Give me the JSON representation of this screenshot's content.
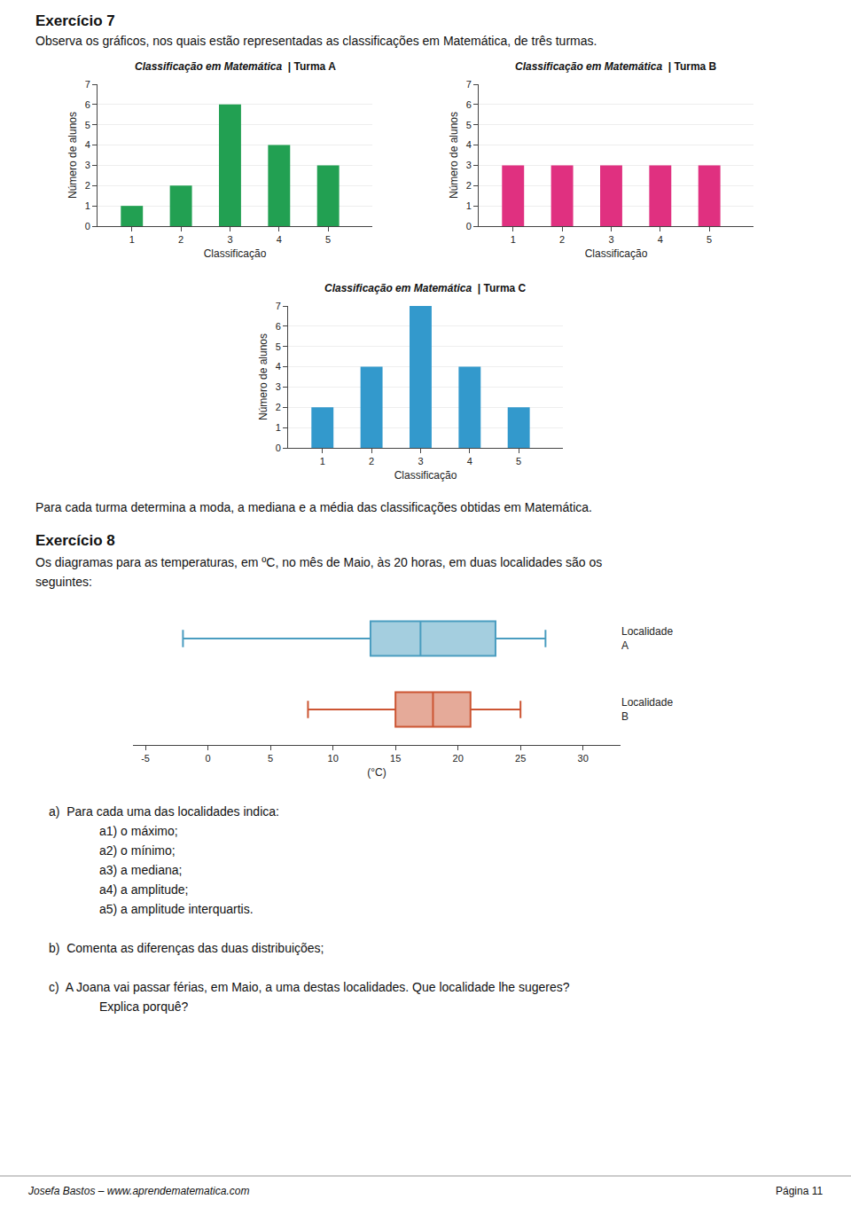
{
  "chart_data": [
    {
      "type": "bar",
      "title": "Classificação em Matemática",
      "subtitle": "| Turma A",
      "xlabel": "Classificação",
      "ylabel": "Número de alunos",
      "x": [
        1,
        2,
        3,
        4,
        5
      ],
      "values": [
        1,
        2,
        6,
        4,
        3
      ],
      "color": "#22a052",
      "xlim": [
        0.3,
        5.9
      ],
      "xticks": [
        1,
        2,
        3,
        4,
        5
      ],
      "ylim": [
        0,
        7
      ],
      "yticks": [
        0,
        1,
        2,
        3,
        4,
        5,
        6,
        7
      ],
      "grid": true
    },
    {
      "type": "bar",
      "title": "Classificação em Matemática",
      "subtitle": "| Turma B",
      "xlabel": "Classificação",
      "ylabel": "Número de alunos",
      "x": [
        1,
        2,
        3,
        4,
        5
      ],
      "values": [
        3,
        3,
        3,
        3,
        3
      ],
      "color": "#e03080",
      "xlim": [
        0.3,
        5.9
      ],
      "xticks": [
        1,
        2,
        3,
        4,
        5
      ],
      "ylim": [
        0,
        7
      ],
      "yticks": [
        0,
        1,
        2,
        3,
        4,
        5,
        6,
        7
      ],
      "grid": true
    },
    {
      "type": "bar",
      "title": "Classificação em Matemática",
      "subtitle": "| Turma C",
      "xlabel": "Classificação",
      "ylabel": "Número de alunos",
      "x": [
        1,
        2,
        3,
        4,
        5
      ],
      "values": [
        2,
        4,
        7,
        4,
        2
      ],
      "color": "#3399cc",
      "xlim": [
        0.3,
        5.9
      ],
      "xticks": [
        1,
        2,
        3,
        4,
        5
      ],
      "ylim": [
        0,
        7
      ],
      "yticks": [
        0,
        1,
        2,
        3,
        4,
        5,
        6,
        7
      ],
      "grid": true
    },
    {
      "type": "box",
      "orientation": "horizontal",
      "xlabel": "(°C)",
      "xlim": [
        -6,
        33
      ],
      "xticks": [
        -5,
        0,
        5,
        10,
        15,
        20,
        25,
        30
      ],
      "grid": false,
      "series": [
        {
          "name": "Localidade\nA",
          "color": "#4a9dc0",
          "min": -2,
          "q1": 13,
          "median": 17,
          "q3": 23,
          "max": 27
        },
        {
          "name": "Localidade\nB",
          "color": "#cc5533",
          "min": 8,
          "q1": 15,
          "median": 18,
          "q3": 21,
          "max": 25
        }
      ]
    }
  ],
  "annotations": [
    "Exercício 7",
    "Observa os gráficos, nos quais estão representadas as classificações em Matemática, de três turmas.",
    "Para cada turma determina a moda, a mediana e a média das classificações obtidas em Matemática.",
    "Exercício 8",
    "Os diagramas para as temperaturas, em ºC, no mês de Maio, às 20 horas, em duas localidades são os",
    "seguintes:",
    "a)  Para cada uma das localidades indica:",
    "a1) o máximo;",
    "a2) o mínimo;",
    "a3) a mediana;",
    "a4) a amplitude;",
    "a5) a amplitude interquartis.",
    "b)  Comenta as diferenças das duas distribuições;",
    "c)  A Joana vai passar férias, em Maio, a uma destas localidades. Que localidade lhe sugeres?",
    "Explica porquê?",
    "Josefa Bastos – www.aprendematematica.com",
    "Página 11"
  ]
}
